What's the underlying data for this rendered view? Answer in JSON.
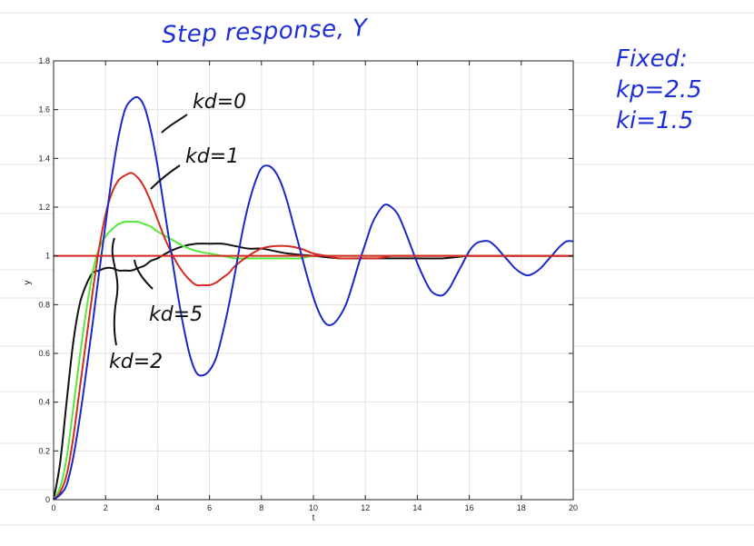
{
  "annotations": {
    "title": "Step response, Y",
    "fixed_heading": "Fixed:",
    "kp_note": "kp=2.5",
    "ki_note": "ki=1.5",
    "kd0_label": "kd=0",
    "kd1_label": "kd=1",
    "kd2_label": "kd=2",
    "kd5_label": "kd=5"
  },
  "colors": {
    "kd0": "#1a28c8",
    "kd1": "#d42a22",
    "kd2": "#55e83a",
    "kd5": "#111111",
    "reference": "#d42a22",
    "ink_blue": "#1f2fd6",
    "grid": "#e3e3e3"
  },
  "chart_data": {
    "type": "line",
    "xlabel": "t",
    "ylabel": "y",
    "xlim": [
      0,
      20
    ],
    "ylim": [
      0,
      1.8
    ],
    "xticks": [
      "0",
      "2",
      "4",
      "6",
      "8",
      "10",
      "12",
      "14",
      "16",
      "18",
      "20"
    ],
    "yticks": [
      "0",
      "0.2",
      "0.4",
      "0.6",
      "0.8",
      "1",
      "1.2",
      "1.4",
      "1.6",
      "1.8"
    ],
    "grid": true,
    "reference": {
      "y": 1.0
    },
    "series": [
      {
        "name": "kd=0",
        "color_key": "kd0",
        "x": [
          0,
          0.25,
          0.5,
          0.75,
          1,
          1.25,
          1.5,
          1.75,
          2,
          2.25,
          2.5,
          2.75,
          3,
          3.25,
          3.5,
          3.75,
          4,
          4.25,
          4.5,
          4.75,
          5,
          5.25,
          5.5,
          5.75,
          6,
          6.25,
          6.5,
          6.75,
          7,
          7.25,
          7.5,
          7.75,
          8,
          8.25,
          8.5,
          8.75,
          9,
          9.25,
          9.5,
          9.75,
          10,
          10.25,
          10.5,
          10.75,
          11,
          11.25,
          11.5,
          11.75,
          12,
          12.25,
          12.5,
          12.75,
          13,
          13.25,
          13.5,
          13.75,
          14,
          14.25,
          14.5,
          14.75,
          15,
          15.25,
          15.5,
          15.75,
          16,
          16.25,
          16.5,
          16.75,
          17,
          17.25,
          17.5,
          17.75,
          18,
          18.25,
          18.5,
          18.75,
          19,
          19.25,
          19.5,
          19.75,
          20
        ],
        "y": [
          0,
          0.02,
          0.06,
          0.17,
          0.33,
          0.52,
          0.72,
          0.93,
          1.13,
          1.33,
          1.49,
          1.6,
          1.64,
          1.65,
          1.61,
          1.51,
          1.37,
          1.2,
          1.03,
          0.86,
          0.71,
          0.59,
          0.52,
          0.51,
          0.53,
          0.58,
          0.68,
          0.8,
          0.94,
          1.09,
          1.21,
          1.3,
          1.36,
          1.37,
          1.35,
          1.3,
          1.22,
          1.12,
          1.02,
          0.92,
          0.83,
          0.76,
          0.72,
          0.72,
          0.75,
          0.8,
          0.88,
          0.97,
          1.05,
          1.13,
          1.18,
          1.21,
          1.2,
          1.17,
          1.11,
          1.04,
          0.97,
          0.91,
          0.86,
          0.84,
          0.84,
          0.87,
          0.92,
          0.97,
          1.02,
          1.05,
          1.06,
          1.06,
          1.04,
          1.01,
          0.98,
          0.95,
          0.93,
          0.92,
          0.93,
          0.95,
          0.98,
          1.01,
          1.04,
          1.06,
          1.06
        ]
      },
      {
        "name": "kd=1",
        "color_key": "kd1",
        "x": [
          0,
          0.25,
          0.5,
          0.75,
          1,
          1.25,
          1.5,
          1.75,
          2,
          2.25,
          2.5,
          2.75,
          3,
          3.25,
          3.5,
          3.75,
          4,
          4.25,
          4.5,
          4.75,
          5,
          5.25,
          5.5,
          5.75,
          6,
          6.25,
          6.5,
          6.75,
          7,
          7.5,
          8,
          8.5,
          9,
          9.5,
          10,
          10.5,
          11,
          11.5,
          12,
          12.5,
          13,
          13.5,
          14,
          15,
          16,
          17,
          18,
          19,
          20
        ],
        "y": [
          0,
          0.03,
          0.1,
          0.25,
          0.45,
          0.65,
          0.85,
          1.03,
          1.17,
          1.26,
          1.31,
          1.33,
          1.34,
          1.32,
          1.28,
          1.22,
          1.15,
          1.08,
          1.02,
          0.97,
          0.93,
          0.9,
          0.88,
          0.88,
          0.88,
          0.89,
          0.91,
          0.93,
          0.96,
          1.0,
          1.03,
          1.04,
          1.04,
          1.03,
          1.01,
          1.0,
          0.99,
          0.99,
          0.99,
          0.99,
          1.0,
          1.0,
          1.0,
          1.0,
          1.0,
          1.0,
          1.0,
          1.0,
          1.0
        ]
      },
      {
        "name": "kd=2",
        "color_key": "kd2",
        "x": [
          0,
          0.25,
          0.5,
          0.75,
          1,
          1.25,
          1.5,
          1.75,
          2,
          2.25,
          2.5,
          2.75,
          3,
          3.25,
          3.5,
          3.75,
          4,
          4.5,
          5,
          5.5,
          6,
          6.5,
          7,
          7.5,
          8,
          8.5,
          9,
          9.5,
          10,
          11,
          12,
          14,
          16,
          18,
          20
        ],
        "y": [
          0,
          0.05,
          0.17,
          0.37,
          0.58,
          0.77,
          0.93,
          1.03,
          1.08,
          1.11,
          1.13,
          1.14,
          1.14,
          1.14,
          1.13,
          1.12,
          1.1,
          1.07,
          1.04,
          1.02,
          1.01,
          1.0,
          0.99,
          0.99,
          0.99,
          0.99,
          0.99,
          0.99,
          1.0,
          1.0,
          1.0,
          1.0,
          1.0,
          1.0,
          1.0
        ]
      },
      {
        "name": "kd=5",
        "color_key": "kd5",
        "x": [
          0,
          0.25,
          0.5,
          0.75,
          1,
          1.25,
          1.5,
          1.75,
          2,
          2.25,
          2.5,
          2.75,
          3,
          3.25,
          3.5,
          3.75,
          4,
          4.5,
          5,
          5.5,
          6,
          6.5,
          7,
          7.5,
          8,
          8.5,
          9,
          10,
          11,
          12,
          13,
          14,
          15,
          16,
          17,
          18,
          19,
          20
        ],
        "y": [
          0,
          0.15,
          0.4,
          0.64,
          0.8,
          0.88,
          0.93,
          0.94,
          0.95,
          0.95,
          0.94,
          0.94,
          0.94,
          0.95,
          0.96,
          0.98,
          0.99,
          1.02,
          1.04,
          1.05,
          1.05,
          1.05,
          1.04,
          1.03,
          1.03,
          1.02,
          1.01,
          1.0,
          0.99,
          0.99,
          0.99,
          0.99,
          0.99,
          1.0,
          1.0,
          1.0,
          1.0,
          1.0
        ]
      }
    ]
  }
}
